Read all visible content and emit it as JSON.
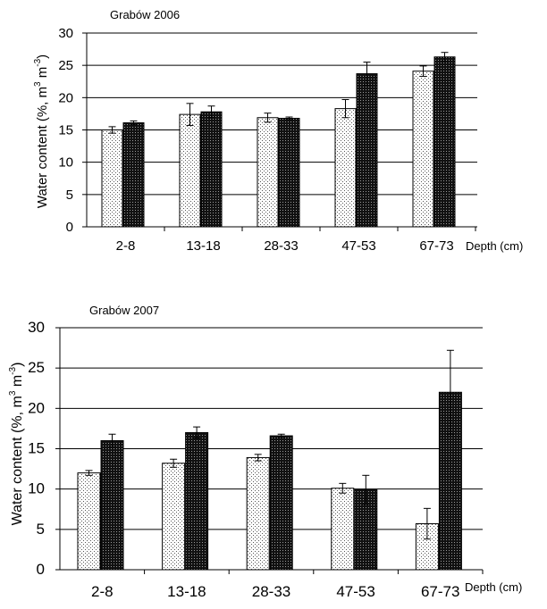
{
  "colors": {
    "bar_light_bg": "#ffffff",
    "bar_light_dot": "#555555",
    "bar_dark_bg": "#111111",
    "bar_dark_dot": "#9a9a9a",
    "gridline": "#000000",
    "axis": "#000000"
  },
  "chart_data": [
    {
      "type": "bar",
      "title": "Grabów 2006",
      "xlabel": "Depth (cm)",
      "ylabel_prefix": "Water content (%, m",
      "ylabel_sup1": "3",
      "ylabel_mid": " m",
      "ylabel_sup2": "-3",
      "ylabel_suffix": ")",
      "categories": [
        "2-8",
        "13-18",
        "28-33",
        "47-53",
        "67-73"
      ],
      "ylim": [
        0,
        30
      ],
      "yticks": [
        "0",
        "5",
        "10",
        "15",
        "20",
        "25",
        "30"
      ],
      "grid": true,
      "series": [
        {
          "pattern": "light-dotted",
          "values": [
            15.0,
            17.4,
            16.9,
            18.3,
            24.1
          ],
          "errors": [
            0.5,
            1.7,
            0.7,
            1.4,
            0.8
          ]
        },
        {
          "pattern": "dark-dotted",
          "values": [
            16.1,
            17.8,
            16.8,
            23.7,
            26.3
          ],
          "errors": [
            0.3,
            0.9,
            0.2,
            1.8,
            0.7
          ]
        }
      ]
    },
    {
      "type": "bar",
      "title": "Grabów  2007",
      "xlabel": "Depth (cm)",
      "ylabel_prefix": "Water content (%, m",
      "ylabel_sup1": "3",
      "ylabel_mid": " m",
      "ylabel_sup2": "-3",
      "ylabel_suffix": ")",
      "categories": [
        "2-8",
        "13-18",
        "28-33",
        "47-53",
        "67-73"
      ],
      "ylim": [
        0,
        30
      ],
      "yticks": [
        "0",
        "5",
        "10",
        "15",
        "20",
        "25",
        "30"
      ],
      "grid": true,
      "series": [
        {
          "pattern": "light-dotted",
          "values": [
            12.0,
            13.2,
            13.9,
            10.1,
            5.7
          ],
          "errors": [
            0.3,
            0.5,
            0.4,
            0.6,
            1.9
          ]
        },
        {
          "pattern": "dark-dotted",
          "values": [
            16.0,
            17.0,
            16.6,
            9.9,
            22.0
          ],
          "errors": [
            0.8,
            0.7,
            0.2,
            1.8,
            5.2
          ]
        }
      ]
    }
  ]
}
